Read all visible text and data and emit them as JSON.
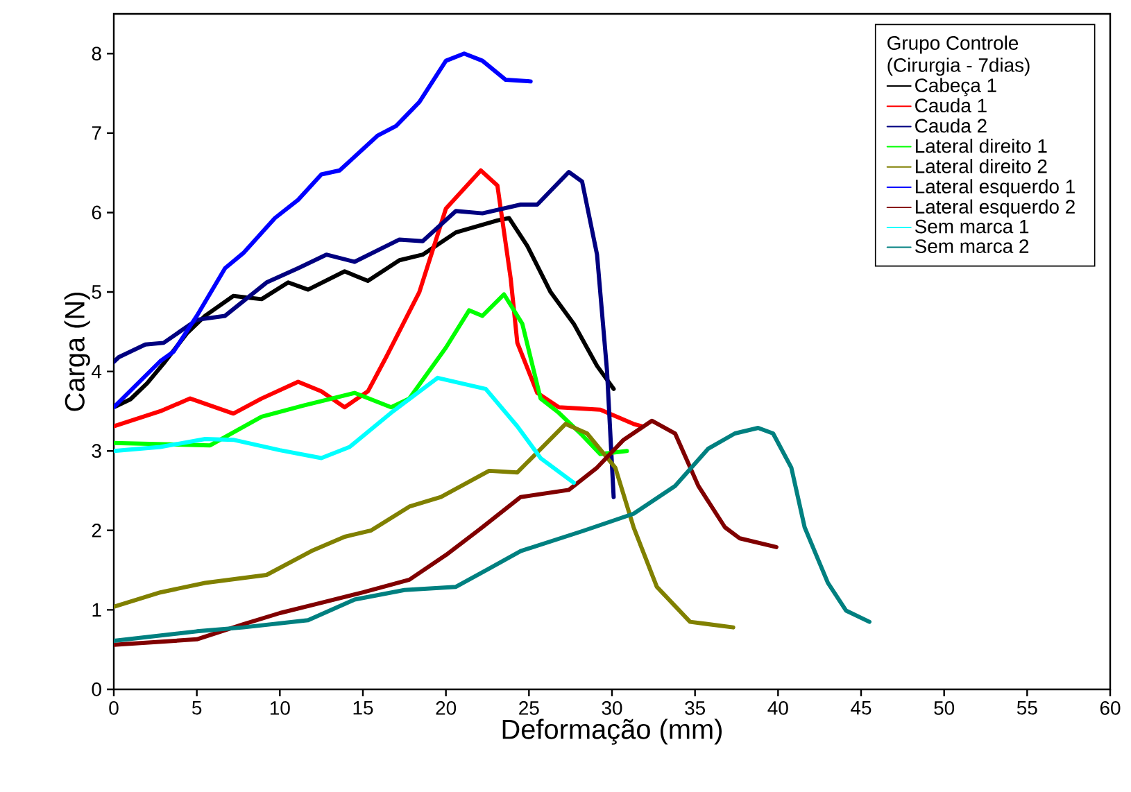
{
  "chart_data": {
    "type": "line",
    "xlabel": "Deformação (mm)",
    "ylabel": "Carga (N)",
    "legend_title": "Grupo Controle (Cirurgia - 7dias)",
    "legend": "top right",
    "grid": false,
    "marker": "none",
    "line_style": "solid",
    "xlim": [
      0,
      60
    ],
    "ylim": [
      0,
      8.5
    ],
    "xticks": [
      0,
      5,
      10,
      15,
      20,
      25,
      30,
      35,
      40,
      45,
      50,
      55,
      60
    ],
    "yticks": [
      0,
      1,
      2,
      3,
      4,
      5,
      6,
      7,
      8
    ],
    "series": [
      {
        "name": "Cabeça 1",
        "color": "#000000",
        "x": [
          0,
          1,
          2,
          3,
          4.4,
          5.5,
          7.2,
          8.9,
          10.5,
          11.7,
          13.9,
          15.3,
          17.2,
          18.6,
          20.6,
          23.1,
          23.8,
          24.9,
          26.3,
          27.7,
          29.1,
          30.1
        ],
        "values": [
          3.55,
          3.65,
          3.85,
          4.1,
          4.48,
          4.7,
          4.95,
          4.91,
          5.12,
          5.03,
          5.26,
          5.14,
          5.4,
          5.47,
          5.75,
          5.9,
          5.93,
          5.58,
          5.0,
          4.6,
          4.07,
          3.78
        ]
      },
      {
        "name": "Cauda 1",
        "color": "#ff0000",
        "x": [
          0,
          2.8,
          4.6,
          7.2,
          8.9,
          11.1,
          12.5,
          13.9,
          15.3,
          16.4,
          18.4,
          20.0,
          22.1,
          23.1,
          23.9,
          24.3,
          25.5,
          26.8,
          29.3,
          31.3,
          31.8
        ],
        "values": [
          3.31,
          3.5,
          3.66,
          3.47,
          3.66,
          3.87,
          3.75,
          3.55,
          3.75,
          4.18,
          5.0,
          6.05,
          6.53,
          6.34,
          5.17,
          4.36,
          3.73,
          3.55,
          3.52,
          3.34,
          3.31
        ]
      },
      {
        "name": "Cauda 2",
        "color": "#000080",
        "x": [
          0,
          0.3,
          1.9,
          3.0,
          5.0,
          6.7,
          9.2,
          11.1,
          12.8,
          14.5,
          17.2,
          18.6,
          20.6,
          22.2,
          24.5,
          25.5,
          27.4,
          28.2,
          29.1,
          29.7,
          30.1
        ],
        "values": [
          4.12,
          4.18,
          4.34,
          4.36,
          4.65,
          4.7,
          5.12,
          5.3,
          5.47,
          5.38,
          5.66,
          5.64,
          6.02,
          5.99,
          6.1,
          6.1,
          6.51,
          6.39,
          5.47,
          4.01,
          2.42
        ]
      },
      {
        "name": "Lateral direito 1",
        "color": "#00ff00",
        "x": [
          0,
          5.8,
          8.9,
          11.4,
          14.5,
          16.7,
          17.8,
          20.0,
          21.4,
          22.2,
          23.5,
          24.6,
          25.7,
          26.8,
          28.2,
          29.3,
          30.9
        ],
        "values": [
          3.1,
          3.07,
          3.43,
          3.57,
          3.73,
          3.55,
          3.66,
          4.3,
          4.77,
          4.7,
          4.97,
          4.6,
          3.66,
          3.48,
          3.2,
          2.96,
          3.0
        ]
      },
      {
        "name": "Lateral direito 2",
        "color": "#808000",
        "x": [
          0,
          2.8,
          5.5,
          9.2,
          11.9,
          13.9,
          15.5,
          17.8,
          19.7,
          22.6,
          24.3,
          27.2,
          28.5,
          30.2,
          31.3,
          32.7,
          34.7,
          37.3
        ],
        "values": [
          1.04,
          1.22,
          1.34,
          1.44,
          1.74,
          1.92,
          2.0,
          2.3,
          2.42,
          2.75,
          2.73,
          3.34,
          3.22,
          2.79,
          2.04,
          1.29,
          0.85,
          0.78
        ]
      },
      {
        "name": "Lateral esquerdo 1",
        "color": "#0000ff",
        "x": [
          0,
          2.8,
          3.6,
          5.0,
          6.7,
          7.8,
          9.7,
          11.1,
          12.5,
          13.6,
          15.9,
          17.0,
          18.4,
          20.0,
          21.1,
          22.2,
          23.6,
          25.1
        ],
        "values": [
          3.55,
          4.13,
          4.25,
          4.7,
          5.3,
          5.49,
          5.93,
          6.16,
          6.48,
          6.53,
          6.97,
          7.09,
          7.39,
          7.91,
          8.0,
          7.91,
          7.67,
          7.65
        ]
      },
      {
        "name": "Lateral esquerdo 2",
        "color": "#800000",
        "x": [
          0,
          5.0,
          7.8,
          10.0,
          12.5,
          15.0,
          17.8,
          20.0,
          22.2,
          24.5,
          27.4,
          29.1,
          30.7,
          32.4,
          33.8,
          35.2,
          36.8,
          37.7,
          39.9
        ],
        "values": [
          0.56,
          0.63,
          0.82,
          0.96,
          1.09,
          1.22,
          1.38,
          1.69,
          2.04,
          2.42,
          2.51,
          2.79,
          3.14,
          3.38,
          3.22,
          2.56,
          2.04,
          1.9,
          1.79
        ]
      },
      {
        "name": "Sem marca 1",
        "color": "#00ffff",
        "x": [
          0,
          2.8,
          5.5,
          7.2,
          10.0,
          12.5,
          14.2,
          16.7,
          19.5,
          22.4,
          24.3,
          25.7,
          27.7
        ],
        "values": [
          3.0,
          3.05,
          3.15,
          3.14,
          3.01,
          2.91,
          3.05,
          3.48,
          3.92,
          3.78,
          3.31,
          2.91,
          2.6
        ]
      },
      {
        "name": "Sem marca 2",
        "color": "#008080",
        "x": [
          0,
          5.0,
          7.8,
          11.7,
          14.5,
          17.5,
          20.6,
          22.6,
          24.5,
          28.2,
          31.3,
          33.8,
          35.8,
          37.4,
          38.8,
          39.7,
          40.8,
          41.6,
          42.4,
          43.0,
          44.1,
          45.5
        ],
        "values": [
          0.61,
          0.73,
          0.78,
          0.87,
          1.13,
          1.25,
          1.29,
          1.52,
          1.74,
          1.99,
          2.21,
          2.56,
          3.03,
          3.22,
          3.29,
          3.22,
          2.79,
          2.04,
          1.64,
          1.34,
          0.99,
          0.85
        ]
      }
    ]
  }
}
